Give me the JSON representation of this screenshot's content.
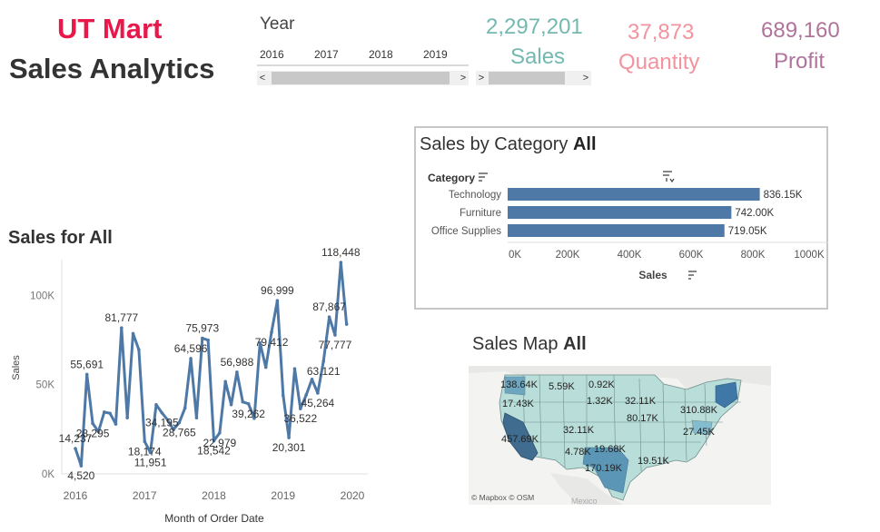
{
  "header": {
    "title_line1": "UT Mart",
    "title_line2": "Sales Analytics"
  },
  "year_filter": {
    "label": "Year",
    "years": [
      "2016",
      "2017",
      "2018",
      "2019"
    ],
    "scroll_left": "<",
    "scroll_right": ">"
  },
  "kpis": [
    {
      "value": "2,297,201",
      "label": "Sales",
      "color": "#73b9b0"
    },
    {
      "value": "37,873",
      "label": "Quantity",
      "color": "#f2939f"
    },
    {
      "value": "689,160",
      "label": "Profit",
      "color": "#b0739b"
    }
  ],
  "category_chart": {
    "title": "Sales by Category",
    "title_suffix": "All",
    "header_label": "Category",
    "axis_label": "Sales",
    "ticks": [
      "0K",
      "200K",
      "400K",
      "600K",
      "800K",
      "1000K"
    ]
  },
  "line_chart": {
    "title": "Sales for All",
    "ylabel": "Sales",
    "xlabel": "Month of Order Date",
    "yticks": [
      "0K",
      "50K",
      "100K"
    ],
    "xticks": [
      "2016",
      "2017",
      "2018",
      "2019",
      "2020"
    ]
  },
  "map": {
    "title": "Sales Map",
    "title_suffix": "All",
    "attribution": "© Mapbox © OSM",
    "country_label": "Mexico",
    "labels": [
      "138.64K",
      "5.59K",
      "0.92K",
      "17.43K",
      "1.32K",
      "32.11K",
      "310.88K",
      "80.17K",
      "32.11K",
      "27.45K",
      "457.69K",
      "4.78K",
      "19.68K",
      "170.19K",
      "19.51K"
    ]
  },
  "chart_data": [
    {
      "type": "bar",
      "title": "Sales by Category All",
      "xlabel": "Sales",
      "ylabel": "Category",
      "categories": [
        "Technology",
        "Furniture",
        "Office Supplies"
      ],
      "values": [
        836150,
        742000,
        719050
      ],
      "value_labels": [
        "836.15K",
        "742.00K",
        "719.05K"
      ],
      "xlim": [
        0,
        1000000
      ],
      "orientation": "horizontal",
      "color": "#4e79a7"
    },
    {
      "type": "line",
      "title": "Sales for All",
      "xlabel": "Month of Order Date",
      "ylabel": "Sales",
      "ylim": [
        0,
        120000
      ],
      "xlim": [
        "2016-01",
        "2020-01"
      ],
      "color": "#4e79a7",
      "x": [
        "2016-01",
        "2016-02",
        "2016-03",
        "2016-04",
        "2016-05",
        "2016-06",
        "2016-07",
        "2016-08",
        "2016-09",
        "2016-10",
        "2016-11",
        "2016-12",
        "2017-01",
        "2017-02",
        "2017-03",
        "2017-04",
        "2017-05",
        "2017-06",
        "2017-07",
        "2017-08",
        "2017-09",
        "2017-10",
        "2017-11",
        "2017-12",
        "2018-01",
        "2018-02",
        "2018-03",
        "2018-04",
        "2018-05",
        "2018-06",
        "2018-07",
        "2018-08",
        "2018-09",
        "2018-10",
        "2018-11",
        "2018-12",
        "2019-01",
        "2019-02",
        "2019-03",
        "2019-04",
        "2019-05",
        "2019-06",
        "2019-07",
        "2019-08",
        "2019-09",
        "2019-10",
        "2019-11",
        "2019-12"
      ],
      "y": [
        14237,
        4520,
        55691,
        28295,
        23648,
        34595,
        33946,
        27909,
        81777,
        31453,
        78629,
        69546,
        18174,
        11951,
        38726,
        34195,
        30132,
        24797,
        28765,
        36899,
        64596,
        31405,
        75973,
        74920,
        18542,
        22979,
        51716,
        38750,
        56988,
        40345,
        39262,
        31115,
        73410,
        59688,
        79412,
        96999,
        43971,
        20301,
        58872,
        36522,
        44261,
        52982,
        45264,
        63121,
        87867,
        77777,
        118448,
        83829
      ],
      "point_labels": [
        {
          "x": "2016-01",
          "text": "14,237"
        },
        {
          "x": "2016-02",
          "text": "4,520"
        },
        {
          "x": "2016-03",
          "text": "55,691"
        },
        {
          "x": "2016-04",
          "text": "28,295"
        },
        {
          "x": "2016-09",
          "text": "81,777"
        },
        {
          "x": "2017-01",
          "text": "18,174"
        },
        {
          "x": "2017-02",
          "text": "11,951"
        },
        {
          "x": "2017-04",
          "text": "34,195"
        },
        {
          "x": "2017-07",
          "text": "28,765"
        },
        {
          "x": "2017-09",
          "text": "64,596"
        },
        {
          "x": "2017-11",
          "text": "75,973"
        },
        {
          "x": "2018-01",
          "text": "18,542"
        },
        {
          "x": "2018-02",
          "text": "22,979"
        },
        {
          "x": "2018-05",
          "text": "56,988"
        },
        {
          "x": "2018-07",
          "text": "39,262"
        },
        {
          "x": "2018-11",
          "text": "79,412"
        },
        {
          "x": "2018-12",
          "text": "96,999"
        },
        {
          "x": "2019-02",
          "text": "20,301"
        },
        {
          "x": "2019-04",
          "text": "36,522"
        },
        {
          "x": "2019-07",
          "text": "45,264"
        },
        {
          "x": "2019-08",
          "text": "63,121"
        },
        {
          "x": "2019-09",
          "text": "87,867"
        },
        {
          "x": "2019-10",
          "text": "77,777"
        },
        {
          "x": "2019-11",
          "text": "118,448"
        }
      ]
    }
  ]
}
